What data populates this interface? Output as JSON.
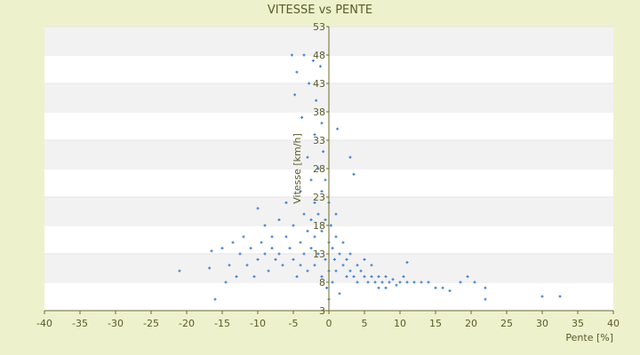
{
  "chart_data": {
    "type": "scatter",
    "title": "VITESSE vs PENTE",
    "xlabel": "Pente [%]",
    "ylabel": "Vitesse [km/h]",
    "xlim": [
      -40,
      40
    ],
    "ylim": [
      3,
      53
    ],
    "xticks": [
      -40,
      -35,
      -30,
      -25,
      -20,
      -15,
      -10,
      -5,
      0,
      5,
      10,
      15,
      20,
      25,
      30,
      35,
      40
    ],
    "yticks": [
      3,
      8,
      13,
      18,
      23,
      28,
      33,
      38,
      43,
      48,
      53
    ],
    "grid": "horizontal-bands",
    "legend": "none",
    "colors": {
      "background": "#eef2cc",
      "plot": "#ffffff",
      "band": "#f2f2f2",
      "marker": "#3a7fd0",
      "axis": "#6b6b2b",
      "text": "#5a5a2a"
    },
    "series": [
      {
        "values": [
          [
            -21,
            10
          ],
          [
            -16.8,
            10.5
          ],
          [
            -16.5,
            13.5
          ],
          [
            -16,
            5
          ],
          [
            -15,
            14
          ],
          [
            -14.5,
            8
          ],
          [
            -14,
            11
          ],
          [
            -13.5,
            15
          ],
          [
            -13,
            9
          ],
          [
            -12.5,
            13
          ],
          [
            -12,
            16
          ],
          [
            -11.5,
            11
          ],
          [
            -11,
            14
          ],
          [
            -10.5,
            9
          ],
          [
            -10,
            12
          ],
          [
            -10,
            21
          ],
          [
            -9.5,
            15
          ],
          [
            -9,
            13
          ],
          [
            -9,
            18
          ],
          [
            -8.5,
            10
          ],
          [
            -8,
            14
          ],
          [
            -8,
            16
          ],
          [
            -7.5,
            12
          ],
          [
            -7,
            19
          ],
          [
            -7,
            13
          ],
          [
            -6.5,
            11
          ],
          [
            -6,
            16
          ],
          [
            -6,
            22
          ],
          [
            -5.5,
            14
          ],
          [
            -5.2,
            48
          ],
          [
            -5,
            18
          ],
          [
            -5,
            12
          ],
          [
            -4.8,
            41
          ],
          [
            -4.5,
            45
          ],
          [
            -4.5,
            9
          ],
          [
            -4,
            24
          ],
          [
            -4,
            15
          ],
          [
            -4,
            11
          ],
          [
            -3.8,
            37
          ],
          [
            -3.5,
            48
          ],
          [
            -3.5,
            20
          ],
          [
            -3.5,
            13
          ],
          [
            -3,
            30
          ],
          [
            -3,
            17
          ],
          [
            -3,
            10
          ],
          [
            -2.8,
            43
          ],
          [
            -2.5,
            26
          ],
          [
            -2.5,
            19
          ],
          [
            -2.5,
            14
          ],
          [
            -2.2,
            47
          ],
          [
            -2,
            34
          ],
          [
            -2,
            22
          ],
          [
            -2,
            16
          ],
          [
            -2,
            11
          ],
          [
            -1.8,
            40
          ],
          [
            -1.5,
            28
          ],
          [
            -1.5,
            20
          ],
          [
            -1.5,
            13
          ],
          [
            -1.2,
            46
          ],
          [
            -1,
            36
          ],
          [
            -1,
            24
          ],
          [
            -1,
            17
          ],
          [
            -1,
            9
          ],
          [
            -0.8,
            31
          ],
          [
            -0.5,
            26
          ],
          [
            -0.5,
            19
          ],
          [
            -0.5,
            12
          ],
          [
            -0.3,
            7
          ],
          [
            0,
            22
          ],
          [
            0,
            15
          ],
          [
            0,
            10
          ],
          [
            0,
            5
          ],
          [
            0.3,
            18
          ],
          [
            0.5,
            14
          ],
          [
            0.5,
            8
          ],
          [
            0.8,
            12
          ],
          [
            1,
            20
          ],
          [
            1,
            16
          ],
          [
            1,
            10
          ],
          [
            1.2,
            35
          ],
          [
            1.5,
            13
          ],
          [
            1.5,
            6
          ],
          [
            2,
            11
          ],
          [
            2,
            15
          ],
          [
            2.5,
            9
          ],
          [
            2.5,
            12
          ],
          [
            3,
            10
          ],
          [
            3,
            13
          ],
          [
            3,
            30
          ],
          [
            3.5,
            9
          ],
          [
            3.5,
            27
          ],
          [
            4,
            11
          ],
          [
            4,
            8
          ],
          [
            4.5,
            10
          ],
          [
            5,
            9
          ],
          [
            5,
            12
          ],
          [
            5.5,
            8
          ],
          [
            6,
            9
          ],
          [
            6,
            11
          ],
          [
            6.5,
            8
          ],
          [
            7,
            9
          ],
          [
            7,
            7
          ],
          [
            7.5,
            8
          ],
          [
            8,
            9
          ],
          [
            8,
            7
          ],
          [
            8.5,
            8
          ],
          [
            9,
            8.5
          ],
          [
            9.5,
            7.5
          ],
          [
            10,
            8
          ],
          [
            10.5,
            9
          ],
          [
            11,
            8
          ],
          [
            11,
            11.5
          ],
          [
            12,
            8
          ],
          [
            13,
            8
          ],
          [
            14,
            8
          ],
          [
            15,
            7
          ],
          [
            16,
            7
          ],
          [
            17,
            6.5
          ],
          [
            18.5,
            8
          ],
          [
            19.5,
            9
          ],
          [
            20.5,
            8
          ],
          [
            22,
            5
          ],
          [
            22,
            7
          ],
          [
            30,
            5.5
          ],
          [
            32.5,
            5.5
          ]
        ]
      }
    ]
  }
}
